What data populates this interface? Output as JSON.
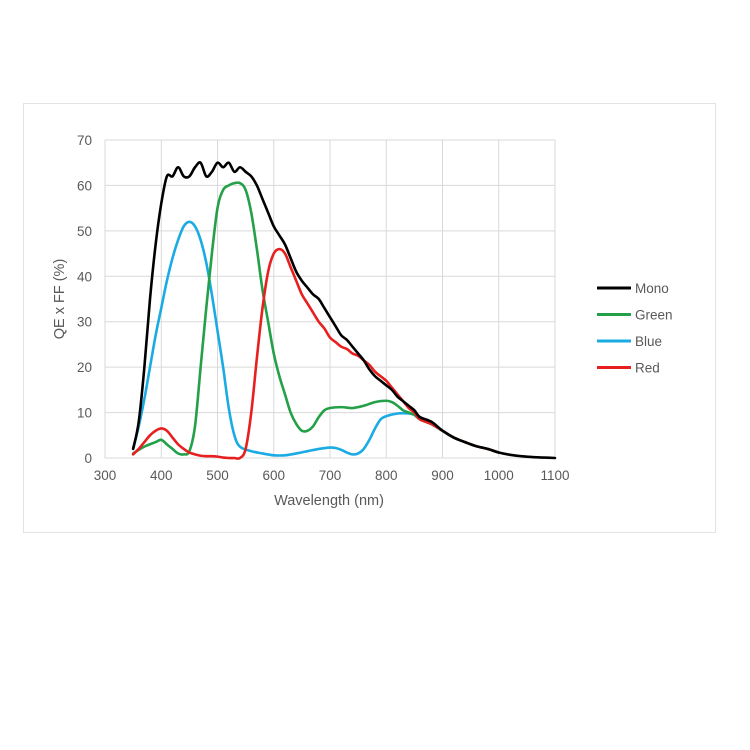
{
  "chart_data": {
    "type": "line",
    "title": "",
    "xlabel": "Wavelength (nm)",
    "ylabel": "QE x FF (%)",
    "xlim": [
      300,
      1100
    ],
    "ylim": [
      0,
      70
    ],
    "xticks": [
      300,
      400,
      500,
      600,
      700,
      800,
      900,
      1000,
      1100
    ],
    "yticks": [
      0,
      10,
      20,
      30,
      40,
      50,
      60,
      70
    ],
    "grid": true,
    "legend_position": "right",
    "series": [
      {
        "name": "Mono",
        "color": "#000000",
        "points": [
          [
            350,
            2
          ],
          [
            360,
            8
          ],
          [
            370,
            20
          ],
          [
            380,
            35
          ],
          [
            390,
            47
          ],
          [
            400,
            56
          ],
          [
            410,
            62
          ],
          [
            420,
            62
          ],
          [
            430,
            64
          ],
          [
            440,
            62
          ],
          [
            450,
            62
          ],
          [
            460,
            64
          ],
          [
            470,
            65
          ],
          [
            480,
            62
          ],
          [
            490,
            63
          ],
          [
            500,
            65
          ],
          [
            510,
            64
          ],
          [
            520,
            65
          ],
          [
            530,
            63
          ],
          [
            540,
            64
          ],
          [
            550,
            63
          ],
          [
            560,
            62
          ],
          [
            570,
            60
          ],
          [
            580,
            57
          ],
          [
            590,
            54
          ],
          [
            600,
            51
          ],
          [
            610,
            49
          ],
          [
            620,
            47
          ],
          [
            630,
            44
          ],
          [
            640,
            41
          ],
          [
            650,
            39
          ],
          [
            660,
            37.5
          ],
          [
            670,
            36
          ],
          [
            680,
            35
          ],
          [
            690,
            33
          ],
          [
            700,
            31
          ],
          [
            710,
            29
          ],
          [
            720,
            27
          ],
          [
            730,
            26
          ],
          [
            740,
            24.5
          ],
          [
            750,
            23
          ],
          [
            760,
            21.5
          ],
          [
            770,
            19.5
          ],
          [
            780,
            18
          ],
          [
            790,
            17
          ],
          [
            800,
            16
          ],
          [
            810,
            15
          ],
          [
            820,
            13.5
          ],
          [
            830,
            12.5
          ],
          [
            840,
            11.5
          ],
          [
            850,
            10.5
          ],
          [
            860,
            9
          ],
          [
            880,
            8
          ],
          [
            900,
            6
          ],
          [
            920,
            4.5
          ],
          [
            940,
            3.5
          ],
          [
            960,
            2.6
          ],
          [
            980,
            2
          ],
          [
            1000,
            1.2
          ],
          [
            1020,
            0.7
          ],
          [
            1040,
            0.4
          ],
          [
            1060,
            0.2
          ],
          [
            1080,
            0.1
          ],
          [
            1100,
            0
          ]
        ]
      },
      {
        "name": "Green",
        "color": "#23a048",
        "points": [
          [
            350,
            1
          ],
          [
            370,
            2.5
          ],
          [
            390,
            3.5
          ],
          [
            400,
            4
          ],
          [
            410,
            3
          ],
          [
            420,
            2
          ],
          [
            430,
            1
          ],
          [
            440,
            0.8
          ],
          [
            450,
            1.5
          ],
          [
            460,
            7
          ],
          [
            470,
            20
          ],
          [
            480,
            33
          ],
          [
            490,
            45
          ],
          [
            500,
            55
          ],
          [
            510,
            59
          ],
          [
            520,
            60
          ],
          [
            530,
            60.5
          ],
          [
            540,
            60.5
          ],
          [
            550,
            59
          ],
          [
            560,
            54
          ],
          [
            570,
            46
          ],
          [
            580,
            37
          ],
          [
            590,
            30
          ],
          [
            600,
            23
          ],
          [
            610,
            18
          ],
          [
            620,
            14
          ],
          [
            630,
            10
          ],
          [
            640,
            7.5
          ],
          [
            650,
            6
          ],
          [
            660,
            6
          ],
          [
            670,
            7
          ],
          [
            680,
            9
          ],
          [
            690,
            10.5
          ],
          [
            700,
            11
          ],
          [
            720,
            11.2
          ],
          [
            740,
            11
          ],
          [
            760,
            11.5
          ],
          [
            780,
            12.3
          ],
          [
            800,
            12.6
          ],
          [
            810,
            12.3
          ],
          [
            820,
            11.5
          ],
          [
            830,
            10.5
          ],
          [
            840,
            10
          ],
          [
            850,
            9.5
          ],
          [
            860,
            8.5
          ],
          [
            880,
            7.5
          ],
          [
            900,
            6
          ],
          [
            920,
            4.5
          ],
          [
            940,
            3.5
          ],
          [
            960,
            2.6
          ],
          [
            980,
            2
          ],
          [
            1000,
            1.2
          ]
        ]
      },
      {
        "name": "Blue",
        "color": "#1aabe3",
        "points": [
          [
            350,
            2
          ],
          [
            360,
            7
          ],
          [
            370,
            13
          ],
          [
            380,
            20
          ],
          [
            390,
            27
          ],
          [
            400,
            33
          ],
          [
            410,
            39
          ],
          [
            420,
            44
          ],
          [
            430,
            48
          ],
          [
            440,
            51
          ],
          [
            450,
            52
          ],
          [
            460,
            51
          ],
          [
            470,
            48
          ],
          [
            480,
            43
          ],
          [
            490,
            36
          ],
          [
            500,
            28
          ],
          [
            510,
            20
          ],
          [
            520,
            11
          ],
          [
            530,
            5
          ],
          [
            540,
            2.5
          ],
          [
            560,
            1.5
          ],
          [
            580,
            1
          ],
          [
            600,
            0.6
          ],
          [
            620,
            0.6
          ],
          [
            640,
            1
          ],
          [
            660,
            1.5
          ],
          [
            680,
            2
          ],
          [
            700,
            2.3
          ],
          [
            710,
            2.2
          ],
          [
            720,
            1.8
          ],
          [
            730,
            1.2
          ],
          [
            740,
            0.8
          ],
          [
            750,
            1
          ],
          [
            760,
            2
          ],
          [
            770,
            4
          ],
          [
            780,
            6.5
          ],
          [
            790,
            8.5
          ],
          [
            800,
            9.2
          ],
          [
            820,
            9.8
          ],
          [
            840,
            9.8
          ],
          [
            850,
            9.5
          ],
          [
            860,
            8.5
          ],
          [
            880,
            7.5
          ],
          [
            900,
            6
          ],
          [
            920,
            4.5
          ],
          [
            940,
            3.5
          ],
          [
            960,
            2.6
          ],
          [
            980,
            2
          ],
          [
            1000,
            1.2
          ]
        ]
      },
      {
        "name": "Red",
        "color": "#e81f1f",
        "points": [
          [
            350,
            0.8
          ],
          [
            360,
            2
          ],
          [
            370,
            3.5
          ],
          [
            380,
            5
          ],
          [
            390,
            6
          ],
          [
            400,
            6.5
          ],
          [
            410,
            6
          ],
          [
            420,
            4.5
          ],
          [
            430,
            3
          ],
          [
            440,
            2
          ],
          [
            450,
            1.2
          ],
          [
            460,
            0.8
          ],
          [
            470,
            0.5
          ],
          [
            480,
            0.4
          ],
          [
            490,
            0.4
          ],
          [
            500,
            0.3
          ],
          [
            510,
            0.1
          ],
          [
            520,
            0
          ],
          [
            530,
            0
          ],
          [
            540,
            0
          ],
          [
            550,
            2
          ],
          [
            560,
            10
          ],
          [
            570,
            22
          ],
          [
            580,
            33
          ],
          [
            590,
            41
          ],
          [
            600,
            45
          ],
          [
            610,
            46
          ],
          [
            620,
            45
          ],
          [
            630,
            42
          ],
          [
            640,
            39
          ],
          [
            650,
            36
          ],
          [
            660,
            34
          ],
          [
            670,
            32
          ],
          [
            680,
            30
          ],
          [
            690,
            28.5
          ],
          [
            700,
            26.5
          ],
          [
            710,
            25.5
          ],
          [
            720,
            24.5
          ],
          [
            730,
            24
          ],
          [
            740,
            23
          ],
          [
            750,
            22.5
          ],
          [
            760,
            21.5
          ],
          [
            770,
            20.5
          ],
          [
            780,
            19
          ],
          [
            790,
            18
          ],
          [
            800,
            17
          ],
          [
            810,
            15.5
          ],
          [
            820,
            14
          ],
          [
            830,
            12.5
          ],
          [
            840,
            11
          ],
          [
            850,
            10
          ],
          [
            860,
            8.5
          ],
          [
            880,
            7.5
          ],
          [
            900,
            6
          ],
          [
            920,
            4.5
          ],
          [
            940,
            3.5
          ],
          [
            960,
            2.6
          ],
          [
            980,
            2
          ],
          [
            1000,
            1.2
          ]
        ]
      }
    ]
  }
}
